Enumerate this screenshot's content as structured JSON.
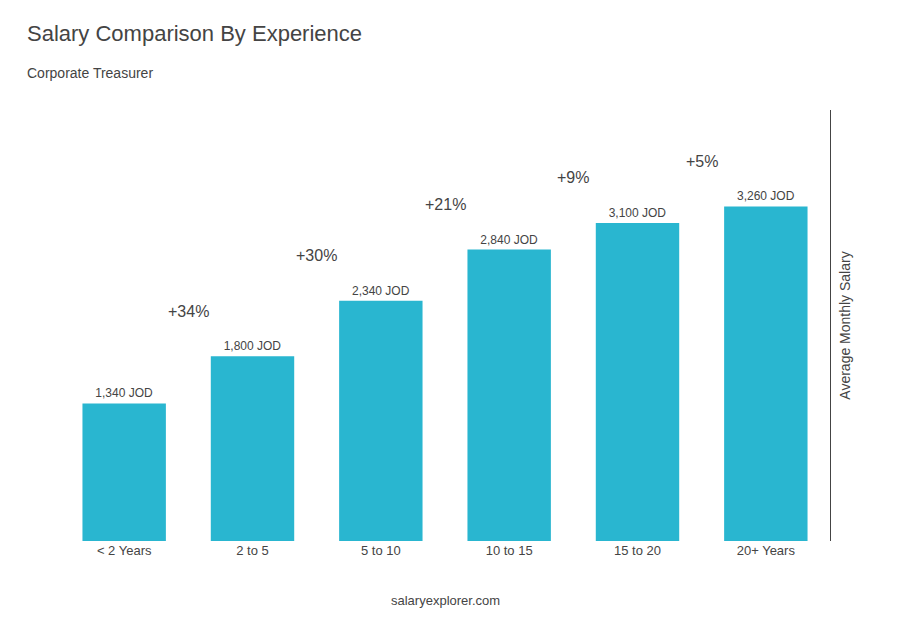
{
  "chart_data": {
    "type": "bar",
    "title": "Salary Comparison By Experience",
    "subtitle": "Corporate Treasurer",
    "ylabel": "Average Monthly Salary",
    "categories": [
      "< 2 Years",
      "2 to 5",
      "5 to 10",
      "10 to 15",
      "15 to 20",
      "20+ Years"
    ],
    "values": [
      1340,
      1800,
      2340,
      2840,
      3100,
      3260
    ],
    "value_labels": [
      "1,340 JOD",
      "1,800 JOD",
      "2,340 JOD",
      "2,840 JOD",
      "3,100 JOD",
      "3,260 JOD"
    ],
    "data_labels": true,
    "annotations": [
      "+34%",
      "+30%",
      "+21%",
      "+9%",
      "+5%"
    ],
    "footer": "salaryexplorer.com",
    "color": "#29b6d0",
    "ylim": [
      0,
      4200
    ],
    "tick_labels": "x",
    "grid": false
  }
}
